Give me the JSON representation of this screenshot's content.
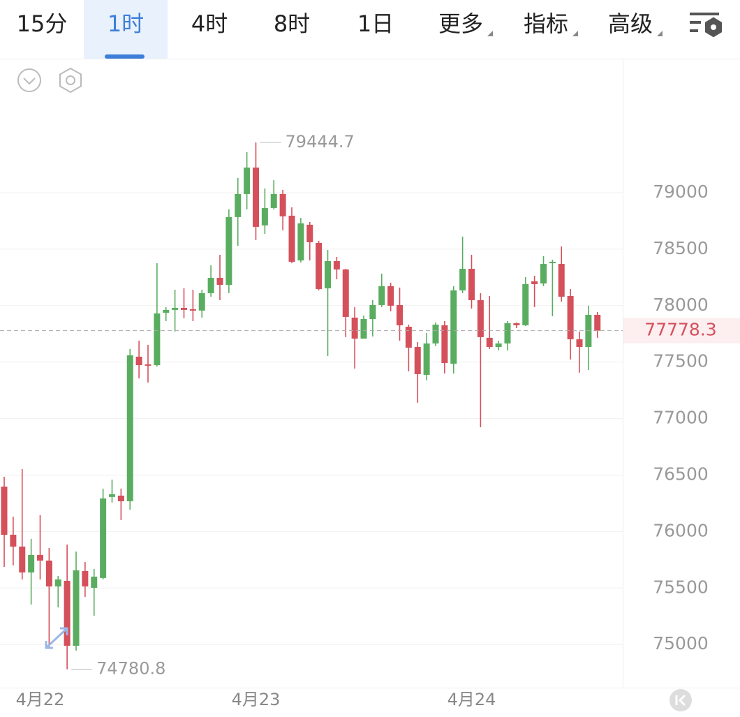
{
  "toolbar": {
    "tabs": [
      "15分",
      "1时",
      "4时",
      "8时",
      "1日",
      "更多",
      "指标",
      "高级"
    ],
    "active": 1
  },
  "chart_data": {
    "type": "candlestick",
    "categories": [
      null,
      null,
      null,
      null,
      "4月22",
      null,
      null,
      null,
      null,
      null,
      null,
      null,
      null,
      null,
      null,
      null,
      null,
      null,
      null,
      null,
      null,
      null,
      null,
      null,
      null,
      null,
      null,
      null,
      "4月23",
      null,
      null,
      null,
      null,
      null,
      null,
      null,
      null,
      null,
      null,
      null,
      null,
      null,
      null,
      null,
      null,
      null,
      null,
      null,
      null,
      null,
      null,
      null,
      "4月24",
      null,
      null,
      null,
      null,
      null,
      null,
      null,
      null,
      null,
      null,
      null,
      null,
      null,
      null
    ],
    "open": [
      76398,
      75972,
      75867,
      75638,
      75793,
      75743,
      75514,
      75564,
      74989,
      75650,
      75502,
      75589,
      76306,
      76318,
      76268,
      77548,
      77480,
      77473,
      77937,
      77962,
      77980,
      77968,
      77956,
      78110,
      78246,
      78184,
      78784,
      78988,
      79222,
      78710,
      78864,
      78988,
      78796,
      78400,
      78716,
      78555,
      78153,
      78394,
      78320,
      77894,
      77708,
      77881,
      78005,
      78172,
      78005,
      77813,
      77634,
      77387,
      77665,
      77826,
      77486,
      78135,
      78326,
      78048,
      77715,
      77634,
      77665,
      77844,
      77826,
      78215,
      78196,
      78376,
      78369,
      78085,
      77702,
      77634,
      77918
    ],
    "high": [
      76485,
      76132,
      76553,
      75935,
      76145,
      75854,
      75607,
      75885,
      75823,
      75731,
      75669,
      76380,
      76460,
      76380,
      77616,
      77690,
      77653,
      78376,
      77987,
      78141,
      78153,
      78141,
      78141,
      78357,
      78450,
      78852,
      79130,
      79358,
      79444.7,
      79037,
      79111,
      79025,
      78870,
      78777,
      78740,
      78574,
      78493,
      78431,
      78326,
      77986,
      77912,
      78048,
      78283,
      78203,
      78160,
      77832,
      77677,
      77758,
      77851,
      77863,
      78172,
      78611,
      78450,
      78110,
      78085,
      77690,
      77863,
      77851,
      78252,
      78264,
      78438,
      78407,
      78524,
      78147,
      77770,
      77999,
      77943
    ],
    "low": [
      75687,
      75700,
      75576,
      75354,
      75576,
      74971,
      75329,
      74780.8,
      74946,
      75422,
      75255,
      75576,
      76256,
      76102,
      76194,
      77356,
      77319,
      77461,
      77863,
      77770,
      77888,
      77863,
      77894,
      78079,
      78048,
      78110,
      78530,
      78852,
      78580,
      78635,
      78852,
      78666,
      78376,
      78382,
      78400,
      78135,
      77554,
      78233,
      77721,
      77443,
      77727,
      77727,
      77987,
      77949,
      77690,
      77418,
      77140,
      77338,
      77641,
      77399,
      77399,
      78110,
      77974,
      76923,
      77616,
      77603,
      77603,
      77801,
      77820,
      77987,
      78172,
      77906,
      78036,
      77523,
      77406,
      77430,
      77715
    ],
    "close": [
      75971,
      75867,
      75638,
      75793,
      75743,
      75514,
      75576,
      74989,
      75657,
      75514,
      75601,
      76293,
      76330,
      76268,
      77560,
      77473,
      77473,
      77931,
      77962,
      77980,
      77962,
      77956,
      78110,
      78246,
      78184,
      78784,
      78988,
      79222,
      78697,
      78864,
      78988,
      78790,
      78388,
      78728,
      78561,
      78147,
      78394,
      78320,
      77900,
      77708,
      77881,
      78005,
      78172,
      77999,
      77826,
      77628,
      77393,
      77665,
      77832,
      77492,
      78135,
      78326,
      78048,
      77721,
      77634,
      77665,
      77844,
      77826,
      78190,
      78190,
      78369,
      78388,
      78079,
      77702,
      77634,
      77918,
      77778.3
    ],
    "up_color": "#5aad60",
    "down_color": "#d4505b",
    "ylim": [
      74618,
      80180
    ],
    "yticks": [
      75000,
      75500,
      76000,
      76500,
      77000,
      77500,
      78000,
      78500,
      79000
    ],
    "grid": true
  }
}
